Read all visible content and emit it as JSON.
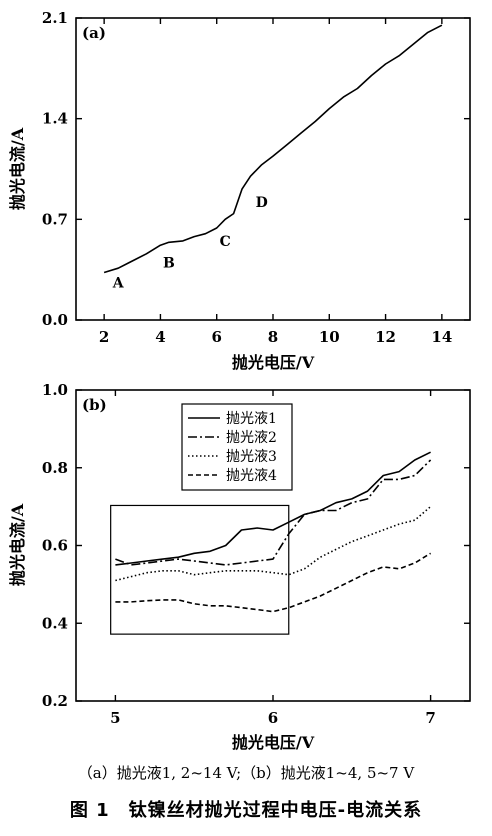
{
  "chart_data": [
    {
      "type": "line",
      "panel_label": "(a)",
      "xlabel": "抛光电压/V",
      "ylabel": "抛光电流/A",
      "xlim": [
        1,
        15
      ],
      "ylim": [
        0,
        2.1
      ],
      "xticks": [
        2,
        4,
        6,
        8,
        10,
        12,
        14
      ],
      "yticks": [
        0.0,
        0.7,
        1.4,
        2.1
      ],
      "ytick_labels": [
        "0.0",
        "0.7",
        "1.4",
        "2.1"
      ],
      "grid": false,
      "series": [
        {
          "x": [
            2.0,
            2.5,
            3.0,
            3.5,
            4.0,
            4.3,
            4.8,
            5.2,
            5.6,
            6.0,
            6.3,
            6.6,
            6.9,
            7.2,
            7.6,
            8.0,
            8.5,
            9.0,
            9.5,
            10.0,
            10.5,
            11.0,
            11.5,
            12.0,
            12.5,
            13.0,
            13.5,
            14.0
          ],
          "y": [
            0.33,
            0.36,
            0.41,
            0.46,
            0.52,
            0.54,
            0.55,
            0.58,
            0.6,
            0.64,
            0.7,
            0.74,
            0.91,
            1.0,
            1.08,
            1.14,
            1.22,
            1.3,
            1.38,
            1.47,
            1.55,
            1.61,
            1.7,
            1.78,
            1.84,
            1.92,
            2.0,
            2.05
          ]
        }
      ],
      "annotations": [
        {
          "text": "A",
          "x": 2.5,
          "y": 0.26
        },
        {
          "text": "B",
          "x": 4.3,
          "y": 0.4
        },
        {
          "text": "C",
          "x": 6.3,
          "y": 0.55
        },
        {
          "text": "D",
          "x": 7.6,
          "y": 0.82
        }
      ]
    },
    {
      "type": "line",
      "panel_label": "(b)",
      "xlabel": "抛光电压/V",
      "ylabel": "抛光电流/A",
      "xlim": [
        4.75,
        7.25
      ],
      "ylim": [
        0.2,
        1.0
      ],
      "xticks": [
        5,
        6,
        7
      ],
      "yticks": [
        0.2,
        0.4,
        0.6,
        0.8,
        1.0
      ],
      "ytick_labels": [
        "0.2",
        "0.4",
        "0.6",
        "0.8",
        "1.0"
      ],
      "grid": false,
      "legend_position": "top-center",
      "highlight_box": {
        "x": [
          4.97,
          6.1
        ],
        "y": [
          0.372,
          0.703
        ]
      },
      "series": [
        {
          "name": "抛光液1",
          "style": "solid",
          "x": [
            5.0,
            5.1,
            5.2,
            5.3,
            5.4,
            5.5,
            5.6,
            5.7,
            5.8,
            5.9,
            6.0,
            6.1,
            6.2,
            6.3,
            6.4,
            6.5,
            6.6,
            6.7,
            6.8,
            6.9,
            7.0
          ],
          "y": [
            0.55,
            0.555,
            0.56,
            0.565,
            0.57,
            0.58,
            0.585,
            0.6,
            0.64,
            0.645,
            0.64,
            0.66,
            0.68,
            0.69,
            0.71,
            0.72,
            0.74,
            0.78,
            0.79,
            0.82,
            0.84
          ]
        },
        {
          "name": "抛光液2",
          "style": "dashdot",
          "x": [
            5.0,
            5.1,
            5.2,
            5.3,
            5.4,
            5.5,
            5.6,
            5.7,
            5.8,
            5.9,
            6.0,
            6.1,
            6.2,
            6.3,
            6.4,
            6.5,
            6.6,
            6.7,
            6.8,
            6.9,
            7.0
          ],
          "y": [
            0.565,
            0.55,
            0.555,
            0.56,
            0.565,
            0.56,
            0.555,
            0.55,
            0.555,
            0.56,
            0.565,
            0.63,
            0.68,
            0.69,
            0.69,
            0.71,
            0.72,
            0.77,
            0.77,
            0.78,
            0.82
          ]
        },
        {
          "name": "抛光液3",
          "style": "dotted",
          "x": [
            5.0,
            5.1,
            5.2,
            5.3,
            5.4,
            5.5,
            5.6,
            5.7,
            5.8,
            5.9,
            6.0,
            6.1,
            6.2,
            6.3,
            6.4,
            6.5,
            6.6,
            6.7,
            6.8,
            6.9,
            7.0
          ],
          "y": [
            0.51,
            0.52,
            0.53,
            0.535,
            0.535,
            0.525,
            0.53,
            0.535,
            0.535,
            0.535,
            0.53,
            0.525,
            0.54,
            0.57,
            0.59,
            0.61,
            0.625,
            0.64,
            0.655,
            0.665,
            0.7
          ]
        },
        {
          "name": "抛光液4",
          "style": "dashed",
          "x": [
            5.0,
            5.1,
            5.2,
            5.3,
            5.4,
            5.5,
            5.6,
            5.7,
            5.8,
            5.9,
            6.0,
            6.1,
            6.2,
            6.3,
            6.4,
            6.5,
            6.6,
            6.7,
            6.8,
            6.9,
            7.0
          ],
          "y": [
            0.455,
            0.455,
            0.458,
            0.46,
            0.46,
            0.45,
            0.445,
            0.445,
            0.44,
            0.435,
            0.43,
            0.44,
            0.455,
            0.47,
            0.49,
            0.51,
            0.53,
            0.545,
            0.54,
            0.555,
            0.58
          ]
        }
      ]
    }
  ],
  "captions": {
    "subcaption": "（a）抛光液1, 2~14 V;（b）抛光液1~4, 5~7 V",
    "title": "图 1　钛镍丝材抛光过程中电压-电流关系"
  }
}
